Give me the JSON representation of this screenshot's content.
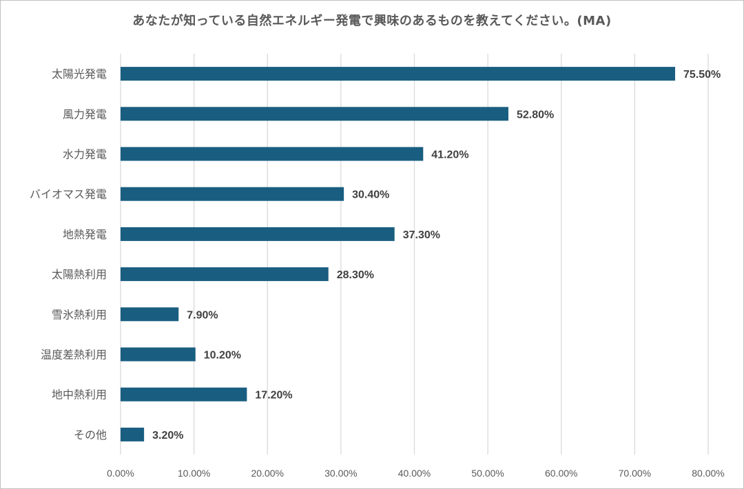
{
  "chart_data": {
    "type": "bar",
    "orientation": "horizontal",
    "title": "あなたが知っている自然エネルギー発電で興味のあるものを教えてください。(MA)",
    "categories": [
      "太陽光発電",
      "風力発電",
      "水力発電",
      "バイオマス発電",
      "地熱発電",
      "太陽熱利用",
      "雪氷熱利用",
      "温度差熱利用",
      "地中熱利用",
      "その他"
    ],
    "values": [
      75.5,
      52.8,
      41.2,
      30.4,
      37.3,
      28.3,
      7.9,
      10.2,
      17.2,
      3.2
    ],
    "data_labels": [
      "75.50%",
      "52.80%",
      "41.20%",
      "30.40%",
      "37.30%",
      "28.30%",
      "7.90%",
      "10.20%",
      "17.20%",
      "3.20%"
    ],
    "x_ticks": [
      "0.00%",
      "10.00%",
      "20.00%",
      "30.00%",
      "40.00%",
      "50.00%",
      "60.00%",
      "70.00%",
      "80.00%"
    ],
    "xlim": [
      0,
      80
    ],
    "xlabel": "",
    "ylabel": "",
    "grid": true,
    "legend": "none",
    "bar_color": "#195e80",
    "grid_color": "#d9d9d9"
  }
}
